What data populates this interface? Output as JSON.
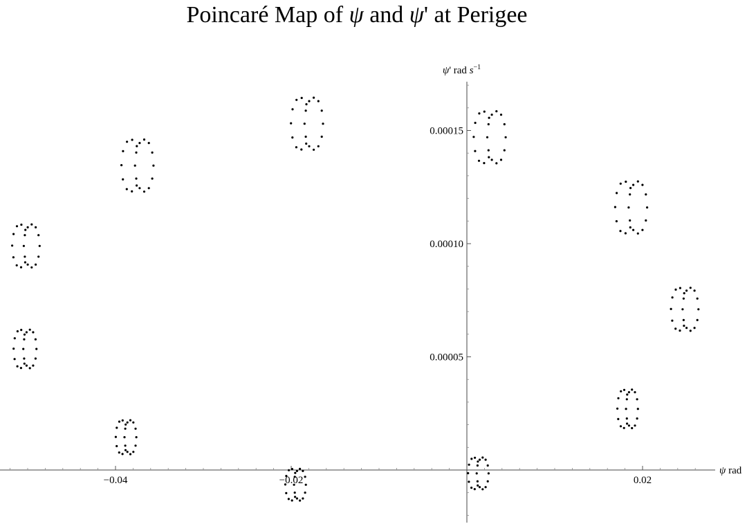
{
  "title": {
    "prefix": "Poincaré Map of ",
    "sym1": "ψ",
    "middle": " and ",
    "sym2": "ψ",
    "suffix": "' at Perigee"
  },
  "chart_data": {
    "type": "scatter",
    "title": "Poincaré Map of ψ and ψ' at Perigee",
    "xlabel": "ψ rad",
    "ylabel": "ψ' rad s^-1",
    "xlabel_parts": {
      "sym": "ψ",
      "unit": " rad"
    },
    "ylabel_parts": {
      "sym": "ψ",
      "mid": "' rad ",
      "s": "s",
      "exp": "−1"
    },
    "xlim": [
      -0.0515,
      0.026
    ],
    "ylim": [
      -2.2e-05,
      0.00017
    ],
    "x_ticks": [
      -0.04,
      -0.02,
      0.02
    ],
    "x_tick_labels": [
      "−0.04",
      "−0.02",
      "0.02"
    ],
    "y_ticks": [
      5e-05,
      0.0001,
      0.00015
    ],
    "y_tick_labels": [
      "0.00005",
      "0.00010",
      "0.00015"
    ],
    "point_color": "#000000",
    "islands": [
      {
        "cx": 0.0026,
        "cy": 0.000147,
        "rx": 0.0014,
        "ry": 1.15e-05
      },
      {
        "cx": 0.0187,
        "cy": 0.000116,
        "rx": 0.0014,
        "ry": 1.15e-05
      },
      {
        "cx": 0.0248,
        "cy": 7.1e-05,
        "rx": 0.0012,
        "ry": 9.5e-06
      },
      {
        "cx": 0.0183,
        "cy": 2.7e-05,
        "rx": 0.0009,
        "ry": 8.5e-06
      },
      {
        "cx": 0.0013,
        "cy": -1.5e-06,
        "rx": 0.0009,
        "ry": 7e-06
      },
      {
        "cx": -0.0195,
        "cy": -6.5e-06,
        "rx": 0.0009,
        "ry": 7e-06
      },
      {
        "cx": -0.0388,
        "cy": 1.45e-05,
        "rx": 0.0009,
        "ry": 7.5e-06
      },
      {
        "cx": -0.0503,
        "cy": 5.35e-05,
        "rx": 0.001,
        "ry": 8.5e-06
      },
      {
        "cx": -0.0502,
        "cy": 9.9e-05,
        "rx": 0.0012,
        "ry": 9.5e-06
      },
      {
        "cx": -0.0375,
        "cy": 0.0001345,
        "rx": 0.0014,
        "ry": 1.15e-05
      },
      {
        "cx": -0.0182,
        "cy": 0.000153,
        "rx": 0.0014,
        "ry": 1.15e-05
      }
    ]
  }
}
